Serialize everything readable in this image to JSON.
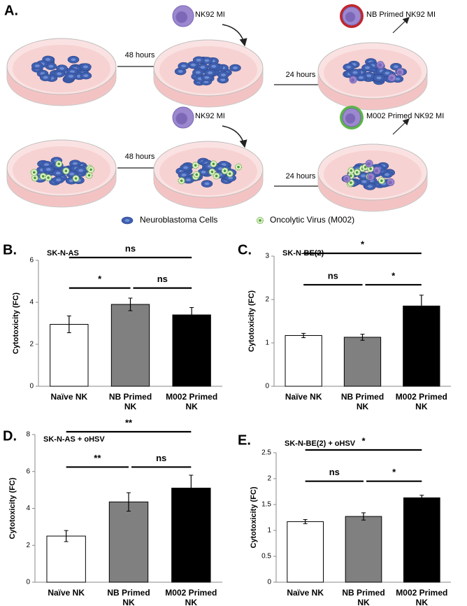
{
  "diagram": {
    "panel": "A.",
    "rows": [
      {
        "first_interval": "48 hours",
        "added": "NK92 MI",
        "second_interval": "24 hours",
        "result": "NB Primed NK92 MI"
      },
      {
        "first_interval": "48 hours",
        "added": "NK92 MI",
        "second_interval": "24 hours",
        "result": "M002 Primed NK92 MI"
      }
    ],
    "legend": [
      "Neuroblastoma Cells",
      "Oncolytic Virus (M002)"
    ]
  },
  "chart_data": [
    {
      "type": "bar",
      "panel": "B.",
      "title": "SK-N-AS",
      "ylabel": "Cytotoxicity (FC)",
      "categories": [
        "Naïve NK",
        "NB Primed NK",
        "M002 Primed NK"
      ],
      "values": [
        2.95,
        3.9,
        3.4
      ],
      "errors": [
        0.4,
        0.3,
        0.35
      ],
      "colors": [
        "#ffffff",
        "#808080",
        "#000000"
      ],
      "ylim": [
        0,
        6
      ],
      "yticks": [
        0,
        2,
        4,
        6
      ],
      "annotations": [
        {
          "label": "ns",
          "between": [
            "Naïve NK",
            "M002 Primed NK"
          ]
        },
        {
          "label": "*",
          "between": [
            "Naïve NK",
            "NB Primed NK"
          ]
        },
        {
          "label": "ns",
          "between": [
            "NB Primed NK",
            "M002 Primed NK"
          ]
        }
      ]
    },
    {
      "type": "bar",
      "panel": "C.",
      "title": "SK-N-BE(2)",
      "ylabel": "Cytotoxicity (FC)",
      "categories": [
        "Naïve NK",
        "NB Primed NK",
        "M002 Primed NK"
      ],
      "values": [
        1.17,
        1.13,
        1.85
      ],
      "errors": [
        0.05,
        0.07,
        0.25
      ],
      "colors": [
        "#ffffff",
        "#808080",
        "#000000"
      ],
      "ylim": [
        0,
        3
      ],
      "yticks": [
        0,
        1,
        2,
        3
      ],
      "annotations": [
        {
          "label": "*",
          "between": [
            "Naïve NK",
            "M002 Primed NK"
          ]
        },
        {
          "label": "ns",
          "between": [
            "Naïve NK",
            "NB Primed NK"
          ]
        },
        {
          "label": "*",
          "between": [
            "NB Primed NK",
            "M002 Primed NK"
          ]
        }
      ]
    },
    {
      "type": "bar",
      "panel": "D.",
      "title": "SK-N-AS + oHSV",
      "ylabel": "Cytotoxicity (FC)",
      "categories": [
        "Naïve NK",
        "NB Primed NK",
        "M002 Primed NK"
      ],
      "values": [
        2.5,
        4.35,
        5.1
      ],
      "errors": [
        0.3,
        0.5,
        0.7
      ],
      "colors": [
        "#ffffff",
        "#808080",
        "#000000"
      ],
      "ylim": [
        0,
        8
      ],
      "yticks": [
        0,
        2,
        4,
        6,
        8
      ],
      "annotations": [
        {
          "label": "**",
          "between": [
            "Naïve NK",
            "M002 Primed NK"
          ]
        },
        {
          "label": "**",
          "between": [
            "Naïve NK",
            "NB Primed NK"
          ]
        },
        {
          "label": "ns",
          "between": [
            "NB Primed NK",
            "M002 Primed NK"
          ]
        }
      ]
    },
    {
      "type": "bar",
      "panel": "E.",
      "title": "SK-N-BE(2) + oHSV",
      "ylabel": "Cytotoxicity (FC)",
      "categories": [
        "Naïve NK",
        "NB Primed NK",
        "M002 Primed NK"
      ],
      "values": [
        1.17,
        1.27,
        1.63
      ],
      "errors": [
        0.04,
        0.07,
        0.05
      ],
      "colors": [
        "#ffffff",
        "#808080",
        "#000000"
      ],
      "ylim": [
        0,
        2.5
      ],
      "yticks": [
        0,
        0.5,
        1,
        1.5,
        2,
        2.5
      ],
      "annotations": [
        {
          "label": "*",
          "between": [
            "Naïve NK",
            "M002 Primed NK"
          ]
        },
        {
          "label": "ns",
          "between": [
            "Naïve NK",
            "NB Primed NK"
          ]
        },
        {
          "label": "*",
          "between": [
            "NB Primed NK",
            "M002 Primed NK"
          ]
        }
      ]
    }
  ]
}
